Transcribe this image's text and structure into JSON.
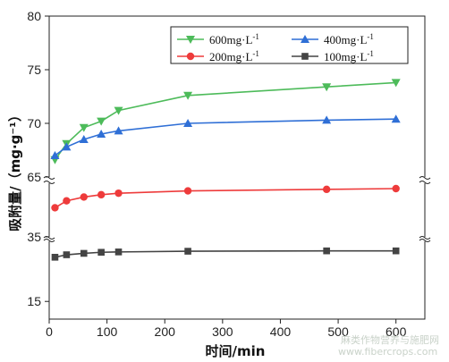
{
  "chart_data": {
    "type": "line",
    "xlabel": "时间/min",
    "ylabel": "吸附量/（mg·g⁻¹）",
    "xlim": [
      0,
      650
    ],
    "x_ticks": [
      0,
      100,
      200,
      300,
      400,
      500,
      600
    ],
    "broken_y_axis": true,
    "y_segments": [
      {
        "range": [
          65,
          80
        ],
        "ticks": [
          65,
          70,
          75,
          80
        ]
      },
      {
        "range": [
          35,
          42
        ],
        "ticks": [
          35
        ]
      },
      {
        "range": [
          10,
          32
        ],
        "ticks": [
          15
        ]
      }
    ],
    "x": [
      10,
      30,
      60,
      90,
      120,
      240,
      480,
      600
    ],
    "series": [
      {
        "name": "600mg·L",
        "sup": "-1",
        "color": "#4dbb5a",
        "marker": "triangle-down",
        "values": [
          66.6,
          68.1,
          69.6,
          70.2,
          71.2,
          72.6,
          73.4,
          73.8
        ]
      },
      {
        "name": "400mg·L",
        "sup": "-1",
        "color": "#2f6fd6",
        "marker": "triangle-up",
        "values": [
          67.0,
          67.8,
          68.5,
          69.0,
          69.3,
          70.0,
          70.3,
          70.4
        ]
      },
      {
        "name": "200mg·L",
        "sup": "-1",
        "color": "#ee3b3b",
        "marker": "circle",
        "values": [
          38.8,
          39.7,
          40.2,
          40.5,
          40.7,
          41.0,
          41.2,
          41.3
        ]
      },
      {
        "name": "100mg·L",
        "sup": "-1",
        "color": "#444444",
        "marker": "square",
        "values": [
          27.5,
          28.2,
          28.6,
          28.9,
          29.0,
          29.2,
          29.3,
          29.3
        ]
      }
    ],
    "legend_position": "top-right",
    "grid": false
  },
  "watermark": {
    "line1": "麻类作物营养与施肥网",
    "line2": "www.fibercrops.com"
  }
}
